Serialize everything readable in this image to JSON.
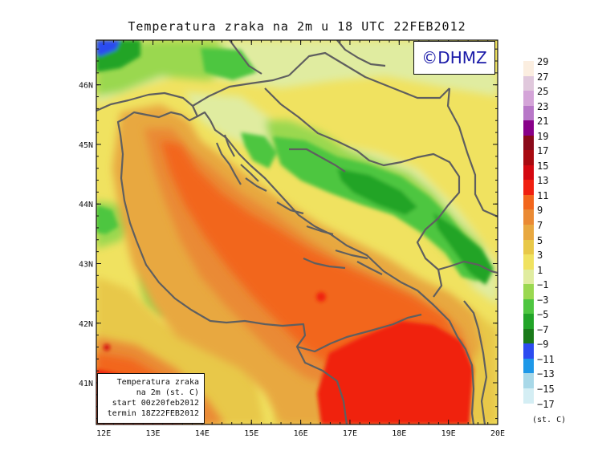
{
  "title": "Temperatura zraka na 2m u 18 UTC 22FEB2012",
  "logo": "©DHMZ",
  "info_box": {
    "line1": "Temperatura zraka",
    "line2": "na 2m (st. C)",
    "line3": "start 00z20feb2012",
    "line4": "termin 18Z22FEB2012"
  },
  "axes": {
    "x_ticks": [
      {
        "value": 12,
        "label": "12E"
      },
      {
        "value": 13,
        "label": "13E"
      },
      {
        "value": 14,
        "label": "14E"
      },
      {
        "value": 15,
        "label": "15E"
      },
      {
        "value": 16,
        "label": "16E"
      },
      {
        "value": 17,
        "label": "17E"
      },
      {
        "value": 18,
        "label": "18E"
      },
      {
        "value": 19,
        "label": "19E"
      },
      {
        "value": 20,
        "label": "20E"
      }
    ],
    "y_ticks": [
      {
        "value": 41,
        "label": "41N"
      },
      {
        "value": 42,
        "label": "42N"
      },
      {
        "value": 43,
        "label": "43N"
      },
      {
        "value": 44,
        "label": "44N"
      },
      {
        "value": 45,
        "label": "45N"
      },
      {
        "value": 46,
        "label": "46N"
      }
    ],
    "lon_range": [
      11.85,
      20.0
    ],
    "lat_range": [
      40.3,
      46.75
    ]
  },
  "colorbar": {
    "units": "(st. C)",
    "levels": [
      {
        "label": "29",
        "color": "#fbeee0"
      },
      {
        "label": "27",
        "color": "#e0c8dc"
      },
      {
        "label": "25",
        "color": "#d4a4d8"
      },
      {
        "label": "23",
        "color": "#b877c8"
      },
      {
        "label": "21",
        "color": "#880088"
      },
      {
        "label": "19",
        "color": "#8a0a1a"
      },
      {
        "label": "17",
        "color": "#a80a10"
      },
      {
        "label": "15",
        "color": "#d40810"
      },
      {
        "label": "13",
        "color": "#f02010"
      },
      {
        "label": "11",
        "color": "#f2661c"
      },
      {
        "label": "9",
        "color": "#ea8a34"
      },
      {
        "label": "7",
        "color": "#e8a840"
      },
      {
        "label": "5",
        "color": "#e8c848"
      },
      {
        "label": "3",
        "color": "#f0e260"
      },
      {
        "label": "1",
        "color": "#e0eca0"
      },
      {
        "label": "−1",
        "color": "#9ad850"
      },
      {
        "label": "−3",
        "color": "#4ec640"
      },
      {
        "label": "−5",
        "color": "#22a428"
      },
      {
        "label": "−7",
        "color": "#1a7a1a"
      },
      {
        "label": "−9",
        "color": "#2c4cf0"
      },
      {
        "label": "−11",
        "color": "#1e98e8"
      },
      {
        "label": "−13",
        "color": "#a8d8e8"
      },
      {
        "label": "−15",
        "color": "#d4eef4"
      },
      {
        "label": "−17",
        "color": ""
      }
    ]
  },
  "colors": {
    "coast": "#5f5f5f",
    "frame": "#111111"
  }
}
